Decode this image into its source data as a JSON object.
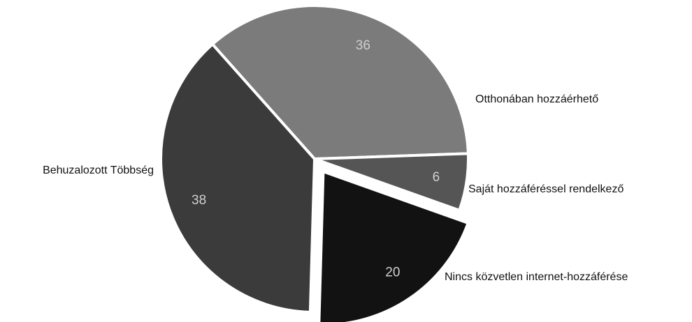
{
  "chart_data": {
    "type": "pie",
    "categories": [
      "Otthonában hozzáérhető",
      "Saját hozzáféréssel rendelkező",
      "Nincs közvetlen internet-hozzáférése",
      "Behuzalozott Többség"
    ],
    "values": [
      36,
      6,
      20,
      38
    ],
    "colors": [
      "#7b7b7b",
      "#555555",
      "#121212",
      "#3b3b3b"
    ],
    "exploded": [
      false,
      false,
      true,
      false
    ]
  }
}
